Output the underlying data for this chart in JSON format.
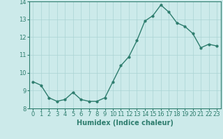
{
  "title": "",
  "xlabel": "Humidex (Indice chaleur)",
  "ylabel": "",
  "x": [
    0,
    1,
    2,
    3,
    4,
    5,
    6,
    7,
    8,
    9,
    10,
    11,
    12,
    13,
    14,
    15,
    16,
    17,
    18,
    19,
    20,
    21,
    22,
    23
  ],
  "y": [
    9.5,
    9.3,
    8.6,
    8.4,
    8.5,
    8.9,
    8.5,
    8.4,
    8.4,
    8.6,
    9.5,
    10.4,
    10.9,
    11.8,
    12.9,
    13.2,
    13.8,
    13.4,
    12.8,
    12.6,
    12.2,
    11.4,
    11.6,
    11.5
  ],
  "line_color": "#2e7d6e",
  "marker": "o",
  "marker_size": 2.0,
  "bg_color": "#cceaea",
  "grid_color": "#aad4d4",
  "ylim": [
    8,
    14
  ],
  "yticks": [
    8,
    9,
    10,
    11,
    12,
    13,
    14
  ],
  "xticks": [
    0,
    1,
    2,
    3,
    4,
    5,
    6,
    7,
    8,
    9,
    10,
    11,
    12,
    13,
    14,
    15,
    16,
    17,
    18,
    19,
    20,
    21,
    22,
    23
  ],
  "tick_fontsize": 6,
  "xlabel_fontsize": 7,
  "title_fontsize": 7
}
